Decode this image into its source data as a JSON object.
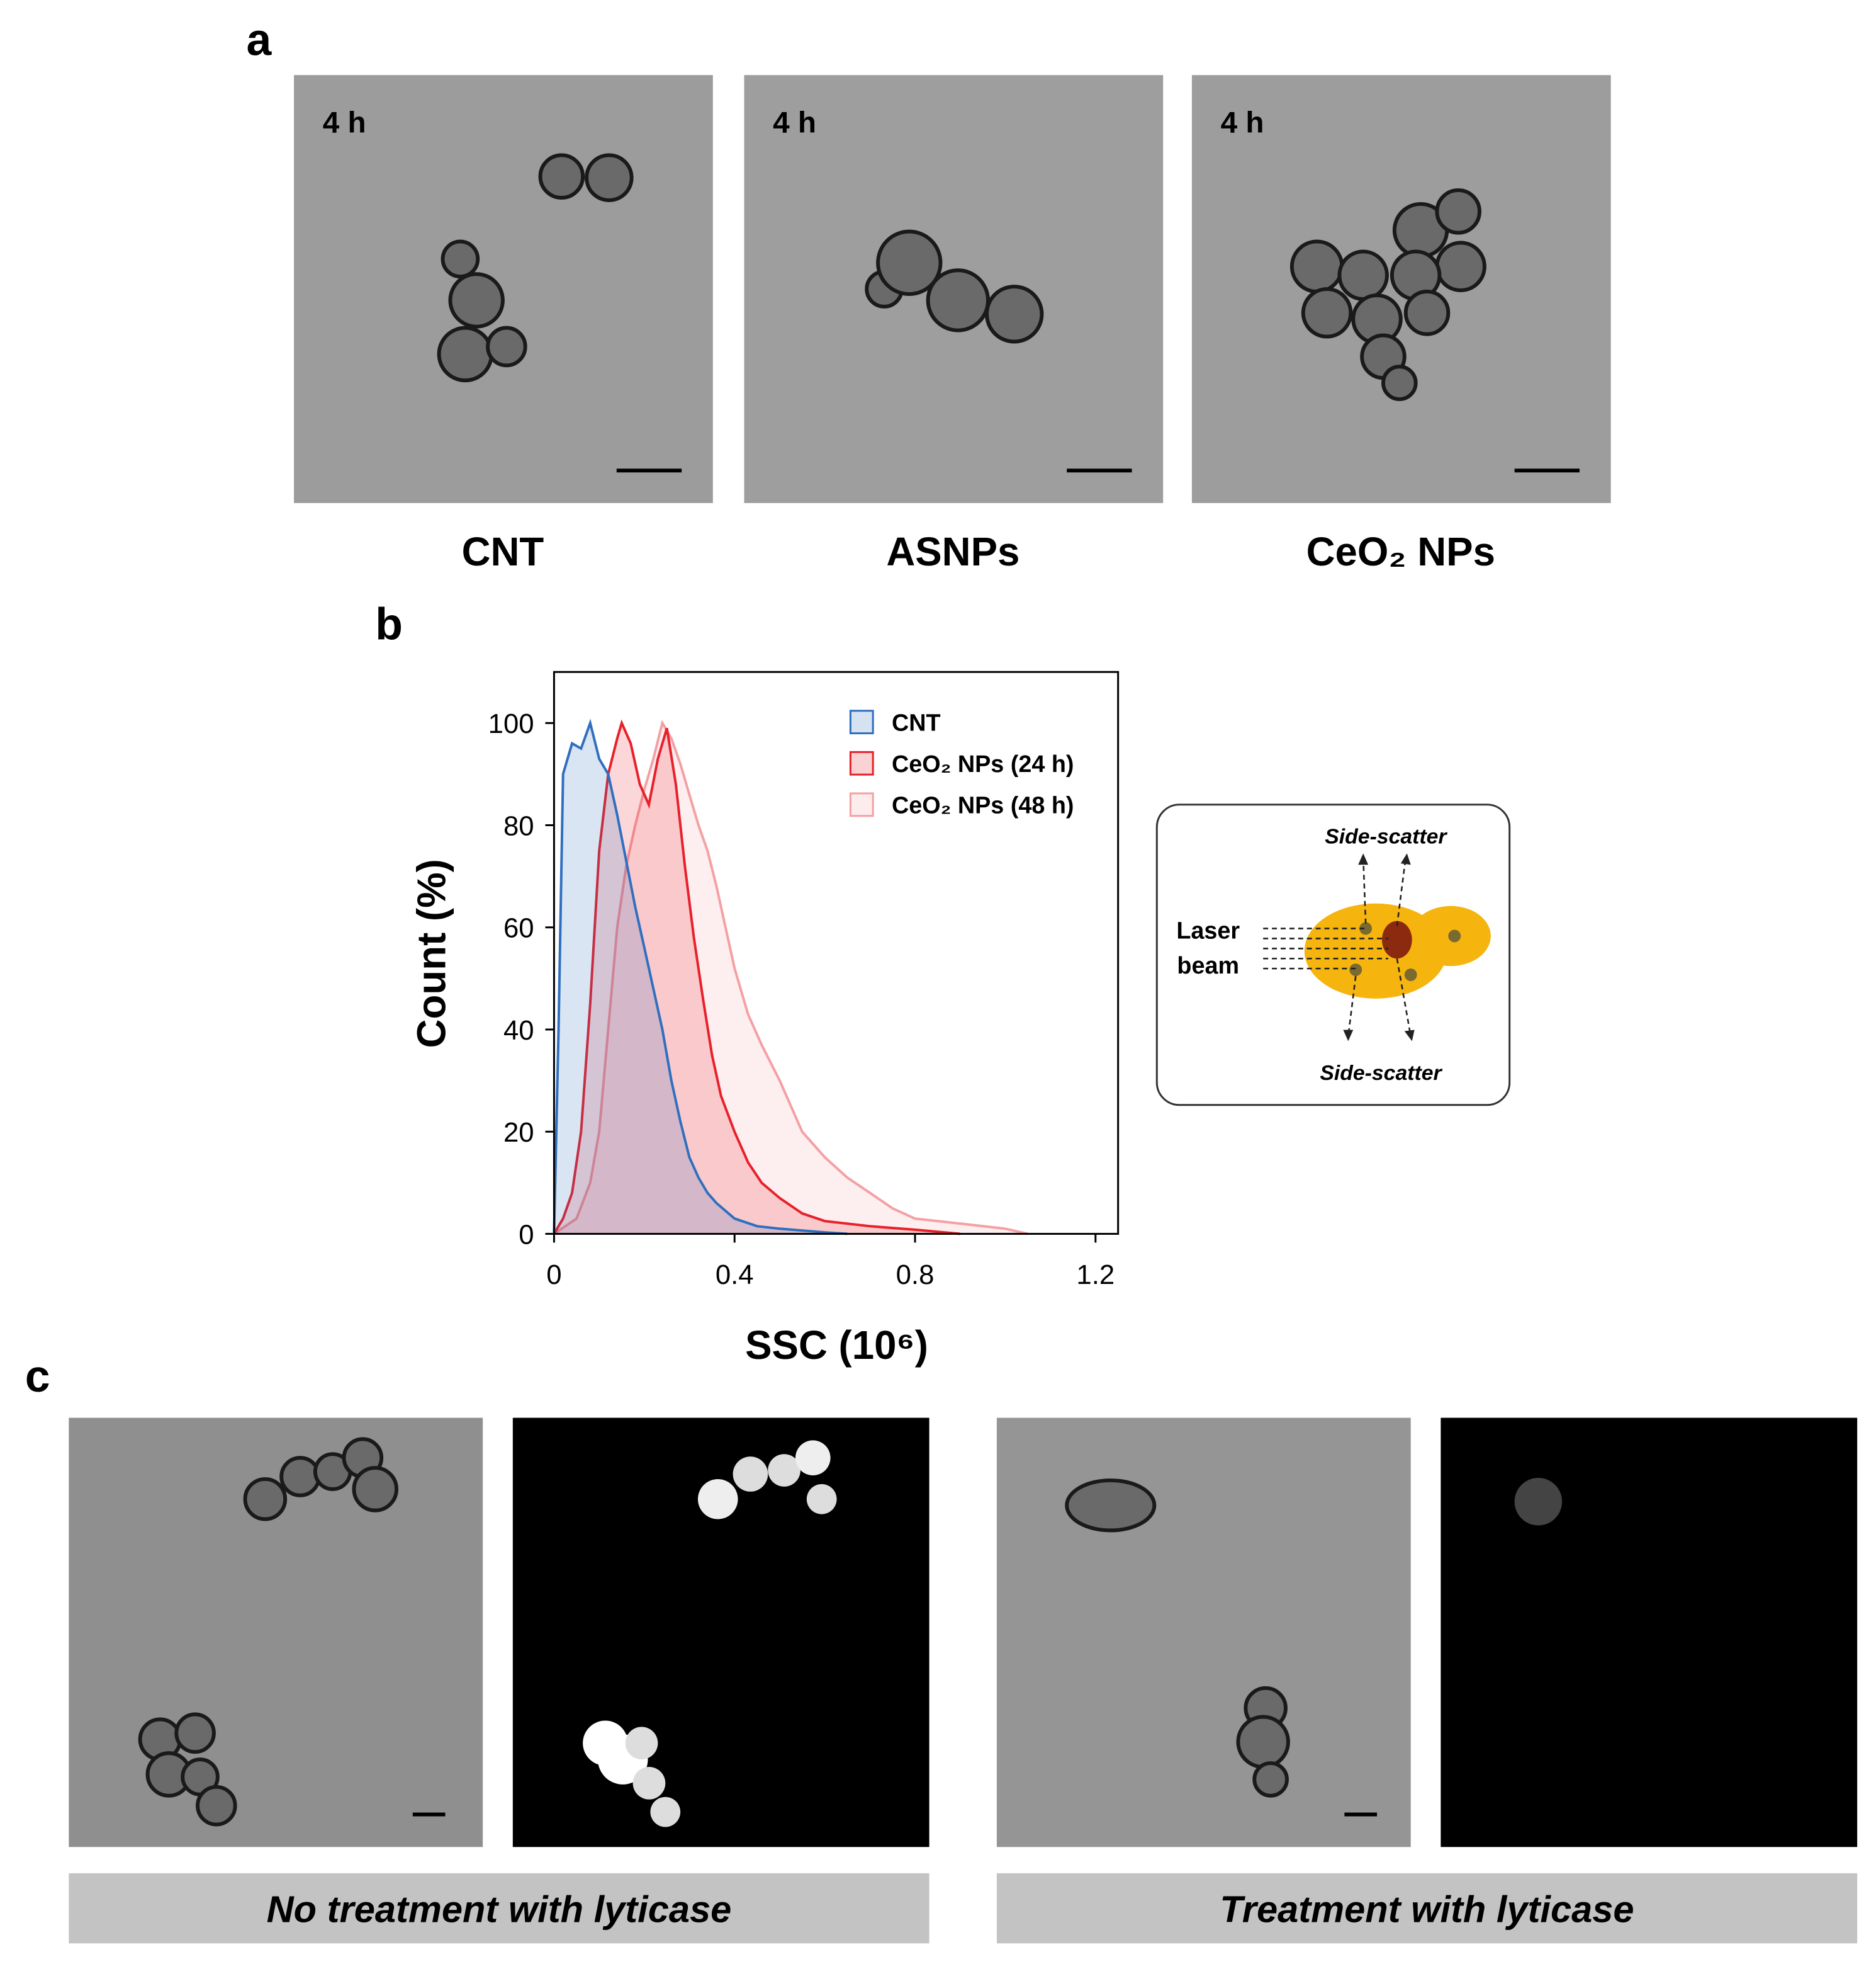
{
  "panel_letters": [
    "a",
    "b",
    "c"
  ],
  "panel_a": {
    "time_labels": [
      "4 h",
      "4 h",
      "4 h"
    ],
    "captions": [
      "CNT",
      "ASNPs",
      "CeO₂ NPs"
    ]
  },
  "chart_data": {
    "type": "line",
    "ylabel": "Count (%)",
    "xlabel": "SSC (10⁶)",
    "xlim": [
      0,
      1.25
    ],
    "xticks": [
      0,
      0.4,
      0.8,
      1.2
    ],
    "ylim": [
      0,
      110
    ],
    "yticks": [
      0,
      20,
      40,
      60,
      80,
      100
    ],
    "legend": "top-right",
    "filled": true,
    "series": [
      {
        "name": "CNT",
        "color": "#2f6fbf",
        "x": [
          0,
          0.01,
          0.02,
          0.04,
          0.06,
          0.08,
          0.1,
          0.12,
          0.14,
          0.16,
          0.18,
          0.2,
          0.22,
          0.24,
          0.26,
          0.28,
          0.3,
          0.32,
          0.34,
          0.36,
          0.4,
          0.45,
          0.5,
          0.6,
          0.65
        ],
        "values": [
          0,
          40,
          90,
          96,
          95,
          100,
          93,
          90,
          82,
          73,
          64,
          56,
          48,
          40,
          30,
          22,
          15,
          11,
          8,
          6,
          3,
          1.5,
          1,
          0.3,
          0
        ]
      },
      {
        "name": "CeO₂ NPs (24 h)",
        "color": "#e8202a",
        "x": [
          0,
          0.02,
          0.04,
          0.06,
          0.08,
          0.1,
          0.12,
          0.14,
          0.15,
          0.17,
          0.19,
          0.21,
          0.23,
          0.25,
          0.27,
          0.29,
          0.31,
          0.33,
          0.35,
          0.37,
          0.4,
          0.43,
          0.46,
          0.5,
          0.55,
          0.6,
          0.7,
          0.8,
          0.9
        ],
        "values": [
          0,
          3,
          8,
          20,
          45,
          75,
          90,
          97,
          100,
          96,
          88,
          84,
          93,
          99,
          88,
          72,
          58,
          46,
          35,
          27,
          20,
          14,
          10,
          7,
          4,
          2.5,
          1.5,
          0.8,
          0
        ]
      },
      {
        "name": "CeO₂ NPs (48 h)",
        "color": "#f4a0a4",
        "x": [
          0,
          0.05,
          0.08,
          0.1,
          0.12,
          0.14,
          0.16,
          0.18,
          0.2,
          0.22,
          0.24,
          0.26,
          0.28,
          0.3,
          0.32,
          0.34,
          0.36,
          0.38,
          0.4,
          0.43,
          0.46,
          0.5,
          0.55,
          0.6,
          0.65,
          0.7,
          0.75,
          0.8,
          0.9,
          1.0,
          1.05
        ],
        "values": [
          0,
          3,
          10,
          20,
          40,
          60,
          72,
          80,
          87,
          93,
          100,
          97,
          92,
          86,
          80,
          75,
          68,
          60,
          52,
          43,
          37,
          30,
          20,
          15,
          11,
          8,
          5,
          3,
          2,
          1,
          0
        ]
      }
    ]
  },
  "diagram": {
    "top_label": "Side-scatter",
    "bottom_label": "Side-scatter",
    "source_label": [
      "Laser",
      "beam"
    ]
  },
  "panel_c": {
    "captions": [
      "No treatment with lyticase",
      "Treatment with lyticase"
    ]
  }
}
